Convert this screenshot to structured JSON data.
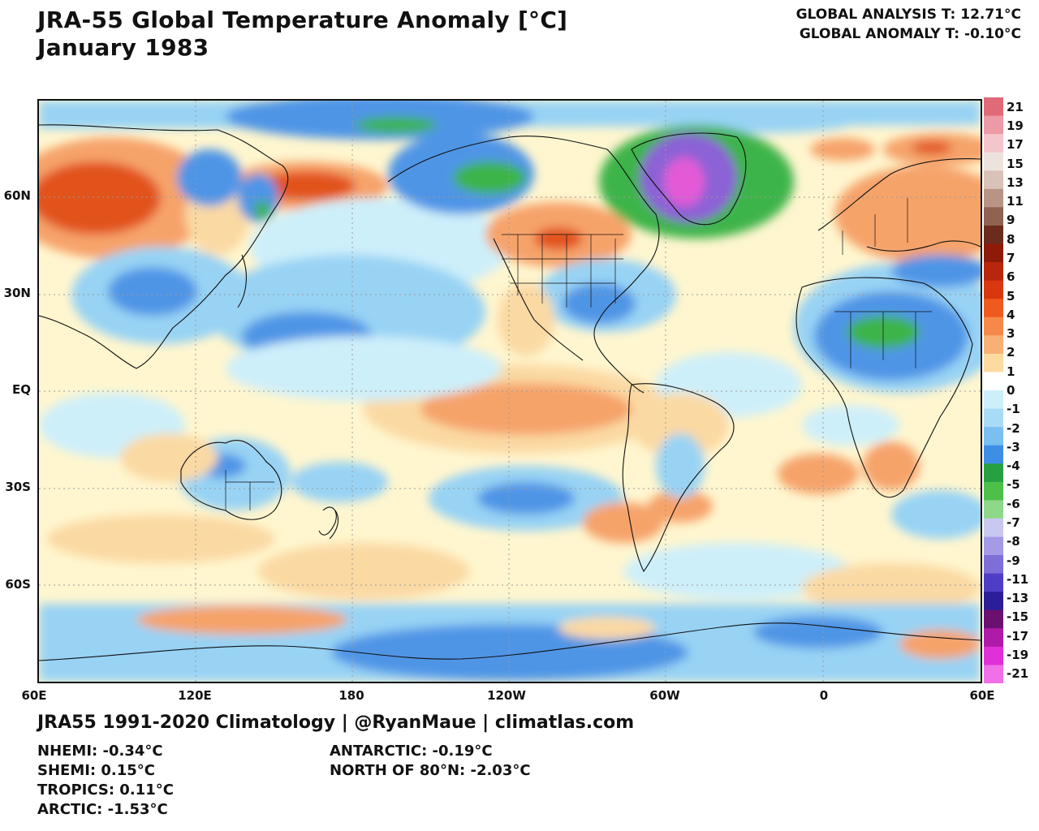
{
  "title_line1": "JRA-55 Global Temperature Anomaly [°C]",
  "title_line2": "January 1983",
  "global_analysis": "GLOBAL ANALYSIS T: 12.71°C",
  "global_anomaly": "GLOBAL ANOMALY T: -0.10°C",
  "credit": "JRA55 1991-2020 Climatology | @RyanMaue | climatlas.com",
  "regional_stats_left": [
    "NHEMI: -0.34°C",
    "SHEMI: 0.15°C",
    "TROPICS: 0.11°C",
    "ARCTIC: -1.53°C"
  ],
  "regional_stats_right": [
    "ANTARCTIC: -0.19°C",
    "NORTH OF 80°N: -2.03°C"
  ],
  "lat_labels": [
    "60N",
    "30N",
    "EQ",
    "30S",
    "60S"
  ],
  "lon_labels": [
    "60E",
    "120E",
    "180",
    "120W",
    "60W",
    "0",
    "60E"
  ],
  "colorbar": {
    "labels": [
      "21",
      "19",
      "17",
      "15",
      "13",
      "11",
      "9",
      "8",
      "7",
      "6",
      "5",
      "4",
      "3",
      "2",
      "1",
      "0",
      "-1",
      "-2",
      "-3",
      "-4",
      "-5",
      "-6",
      "-7",
      "-8",
      "-9",
      "-11",
      "-13",
      "-15",
      "-17",
      "-19",
      "-21"
    ],
    "colors": [
      "#e06a78",
      "#ec9aa6",
      "#f4c6cc",
      "#ede3de",
      "#d9c2b8",
      "#b89484",
      "#8f6252",
      "#6b2c1e",
      "#8e1a0a",
      "#b8260d",
      "#d8370f",
      "#ef5a1e",
      "#f6894a",
      "#f9b075",
      "#fcdba0",
      "#ffffff",
      "#cdeffa",
      "#a8dcf6",
      "#79bff0",
      "#3f8ee6",
      "#26a040",
      "#4ec04a",
      "#8ed88a",
      "#c8c8f0",
      "#a49ae6",
      "#7e6ed8",
      "#4e3ec6",
      "#2c1e98",
      "#6a1070",
      "#b01aa8",
      "#e030d8",
      "#f070e8"
    ]
  },
  "map_colors": {
    "ocean_neutral": "#fff6cf",
    "weak_warm": "#fbd9a3",
    "warm": "#f6a36a",
    "strong_warm": "#e2521f",
    "weak_cool": "#cdeffa",
    "cool": "#98d3f4",
    "strong_cool": "#4f95e6",
    "cold_green": "#3cb44a",
    "cold_purple": "#8c62d6",
    "extreme_cold": "#e45ad6"
  }
}
